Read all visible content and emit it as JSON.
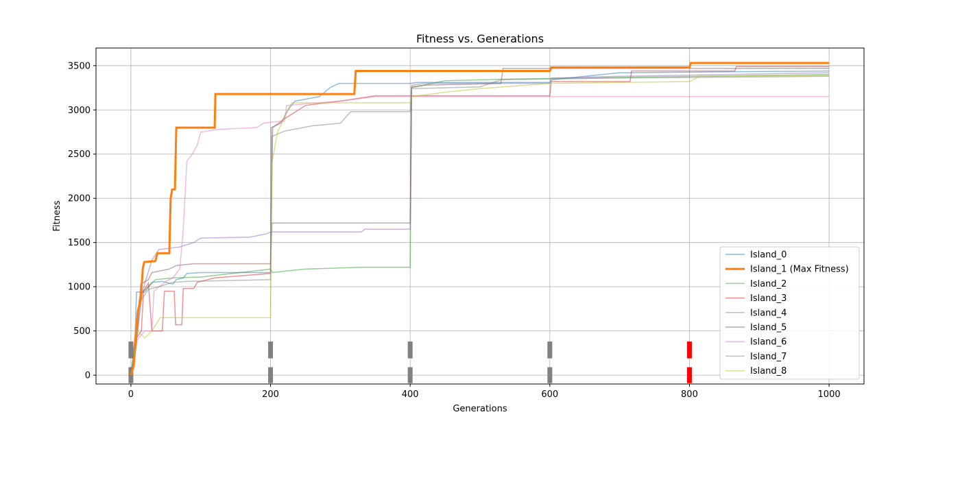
{
  "chart_data": {
    "type": "line",
    "title": "Fitness vs. Generations",
    "xlabel": "Generations",
    "ylabel": "Fitness",
    "xlim": [
      -50,
      1050
    ],
    "ylim": [
      -100,
      3700
    ],
    "xticks": [
      0,
      200,
      400,
      600,
      800,
      1000
    ],
    "yticks": [
      0,
      500,
      1000,
      1500,
      2000,
      2500,
      3000,
      3500
    ],
    "grid": true,
    "legend_position": "lower right",
    "series": [
      {
        "name": "Island_0",
        "color": "#1f77b4",
        "highlight": false,
        "points": [
          [
            0,
            0
          ],
          [
            3,
            200
          ],
          [
            6,
            450
          ],
          [
            8,
            940
          ],
          [
            20,
            940
          ],
          [
            25,
            1000
          ],
          [
            30,
            1050
          ],
          [
            45,
            1060
          ],
          [
            60,
            1030
          ],
          [
            65,
            1080
          ],
          [
            75,
            1100
          ],
          [
            80,
            1150
          ],
          [
            100,
            1160
          ],
          [
            200,
            1160
          ],
          [
            201,
            2800
          ],
          [
            215,
            2850
          ],
          [
            225,
            3000
          ],
          [
            235,
            3100
          ],
          [
            270,
            3150
          ],
          [
            285,
            3250
          ],
          [
            298,
            3300
          ],
          [
            400,
            3300
          ],
          [
            410,
            3310
          ],
          [
            600,
            3310
          ],
          [
            603,
            3340
          ],
          [
            650,
            3380
          ],
          [
            700,
            3420
          ],
          [
            1000,
            3440
          ]
        ]
      },
      {
        "name": "Island_1 (Max Fitness)",
        "color": "#ff7f0e",
        "highlight": true,
        "points": [
          [
            0,
            0
          ],
          [
            4,
            100
          ],
          [
            7,
            450
          ],
          [
            10,
            730
          ],
          [
            14,
            850
          ],
          [
            17,
            1200
          ],
          [
            19,
            1280
          ],
          [
            35,
            1290
          ],
          [
            38,
            1380
          ],
          [
            55,
            1380
          ],
          [
            57,
            2000
          ],
          [
            59,
            2100
          ],
          [
            63,
            2100
          ],
          [
            65,
            2800
          ],
          [
            120,
            2800
          ],
          [
            121,
            3180
          ],
          [
            320,
            3180
          ],
          [
            322,
            3440
          ],
          [
            600,
            3440
          ],
          [
            602,
            3480
          ],
          [
            800,
            3480
          ],
          [
            802,
            3530
          ],
          [
            1000,
            3530
          ]
        ]
      },
      {
        "name": "Island_2",
        "color": "#2ca02c",
        "highlight": false,
        "points": [
          [
            0,
            0
          ],
          [
            4,
            250
          ],
          [
            7,
            500
          ],
          [
            12,
            850
          ],
          [
            15,
            930
          ],
          [
            25,
            1000
          ],
          [
            35,
            1080
          ],
          [
            60,
            1100
          ],
          [
            100,
            1110
          ],
          [
            200,
            1200
          ],
          [
            203,
            1160
          ],
          [
            225,
            1180
          ],
          [
            250,
            1200
          ],
          [
            330,
            1220
          ],
          [
            400,
            1220
          ],
          [
            402,
            3250
          ],
          [
            450,
            3330
          ],
          [
            550,
            3350
          ],
          [
            1000,
            3400
          ]
        ]
      },
      {
        "name": "Island_3",
        "color": "#d62728",
        "highlight": false,
        "points": [
          [
            0,
            0
          ],
          [
            5,
            200
          ],
          [
            8,
            420
          ],
          [
            15,
            500
          ],
          [
            18,
            950
          ],
          [
            25,
            1040
          ],
          [
            30,
            500
          ],
          [
            45,
            500
          ],
          [
            48,
            950
          ],
          [
            62,
            950
          ],
          [
            64,
            570
          ],
          [
            73,
            570
          ],
          [
            75,
            980
          ],
          [
            90,
            980
          ],
          [
            95,
            1050
          ],
          [
            120,
            1100
          ],
          [
            200,
            1150
          ],
          [
            203,
            2800
          ],
          [
            220,
            2900
          ],
          [
            250,
            3050
          ],
          [
            300,
            3100
          ],
          [
            350,
            3160
          ],
          [
            600,
            3160
          ],
          [
            602,
            3320
          ],
          [
            715,
            3320
          ],
          [
            717,
            3440
          ],
          [
            865,
            3440
          ],
          [
            867,
            3490
          ],
          [
            1000,
            3490
          ]
        ]
      },
      {
        "name": "Island_4",
        "color": "#9467bd",
        "highlight": false,
        "points": [
          [
            0,
            0
          ],
          [
            5,
            200
          ],
          [
            8,
            400
          ],
          [
            14,
            850
          ],
          [
            20,
            1040
          ],
          [
            30,
            1300
          ],
          [
            40,
            1420
          ],
          [
            70,
            1450
          ],
          [
            90,
            1500
          ],
          [
            100,
            1550
          ],
          [
            170,
            1560
          ],
          [
            195,
            1600
          ],
          [
            200,
            1620
          ],
          [
            330,
            1620
          ],
          [
            335,
            1650
          ],
          [
            400,
            1650
          ],
          [
            402,
            3280
          ],
          [
            420,
            3300
          ],
          [
            600,
            3300
          ],
          [
            602,
            3360
          ],
          [
            700,
            3380
          ],
          [
            1000,
            3420
          ]
        ]
      },
      {
        "name": "Island_5",
        "color": "#8c564b",
        "highlight": false,
        "points": [
          [
            0,
            0
          ],
          [
            5,
            150
          ],
          [
            8,
            400
          ],
          [
            14,
            1030
          ],
          [
            25,
            1080
          ],
          [
            30,
            1160
          ],
          [
            55,
            1200
          ],
          [
            65,
            1240
          ],
          [
            90,
            1260
          ],
          [
            200,
            1260
          ],
          [
            202,
            1720
          ],
          [
            400,
            1720
          ],
          [
            402,
            3260
          ],
          [
            420,
            3280
          ],
          [
            530,
            3300
          ],
          [
            533,
            3470
          ],
          [
            600,
            3470
          ],
          [
            800,
            3470
          ],
          [
            1000,
            3470
          ]
        ]
      },
      {
        "name": "Island_6",
        "color": "#e377c2",
        "highlight": false,
        "points": [
          [
            0,
            0
          ],
          [
            5,
            200
          ],
          [
            9,
            400
          ],
          [
            20,
            500
          ],
          [
            30,
            500
          ],
          [
            33,
            950
          ],
          [
            50,
            1060
          ],
          [
            60,
            1100
          ],
          [
            70,
            1200
          ],
          [
            75,
            1650
          ],
          [
            80,
            2420
          ],
          [
            88,
            2500
          ],
          [
            95,
            2600
          ],
          [
            100,
            2750
          ],
          [
            125,
            2780
          ],
          [
            180,
            2800
          ],
          [
            190,
            2850
          ],
          [
            200,
            2860
          ],
          [
            212,
            2870
          ],
          [
            220,
            2870
          ],
          [
            223,
            3050
          ],
          [
            300,
            3100
          ],
          [
            350,
            3150
          ],
          [
            1000,
            3150
          ]
        ]
      },
      {
        "name": "Island_7",
        "color": "#7f7f7f",
        "highlight": false,
        "points": [
          [
            0,
            0
          ],
          [
            5,
            150
          ],
          [
            9,
            450
          ],
          [
            15,
            850
          ],
          [
            25,
            970
          ],
          [
            40,
            1000
          ],
          [
            60,
            1050
          ],
          [
            80,
            1060
          ],
          [
            200,
            1080
          ],
          [
            202,
            2700
          ],
          [
            220,
            2760
          ],
          [
            260,
            2820
          ],
          [
            300,
            2850
          ],
          [
            315,
            2980
          ],
          [
            400,
            2980
          ],
          [
            402,
            3240
          ],
          [
            500,
            3260
          ],
          [
            530,
            3340
          ],
          [
            600,
            3350
          ],
          [
            700,
            3360
          ],
          [
            1000,
            3380
          ]
        ]
      },
      {
        "name": "Island_8",
        "color": "#bcbd22",
        "highlight": false,
        "points": [
          [
            0,
            0
          ],
          [
            5,
            150
          ],
          [
            9,
            500
          ],
          [
            20,
            420
          ],
          [
            30,
            500
          ],
          [
            42,
            650
          ],
          [
            200,
            650
          ],
          [
            202,
            2400
          ],
          [
            210,
            2750
          ],
          [
            230,
            3080
          ],
          [
            400,
            3080
          ],
          [
            402,
            3150
          ],
          [
            450,
            3200
          ],
          [
            500,
            3240
          ],
          [
            600,
            3300
          ],
          [
            700,
            3310
          ],
          [
            800,
            3320
          ],
          [
            815,
            3380
          ],
          [
            1000,
            3390
          ]
        ]
      }
    ],
    "migration_markers": [
      {
        "x": 0,
        "color": "#808080"
      },
      {
        "x": 200,
        "color": "#808080"
      },
      {
        "x": 400,
        "color": "#808080"
      },
      {
        "x": 600,
        "color": "#808080"
      },
      {
        "x": 800,
        "color": "#ff0000"
      }
    ],
    "marker_bands": [
      [
        -90,
        90
      ],
      [
        190,
        380
      ]
    ]
  }
}
